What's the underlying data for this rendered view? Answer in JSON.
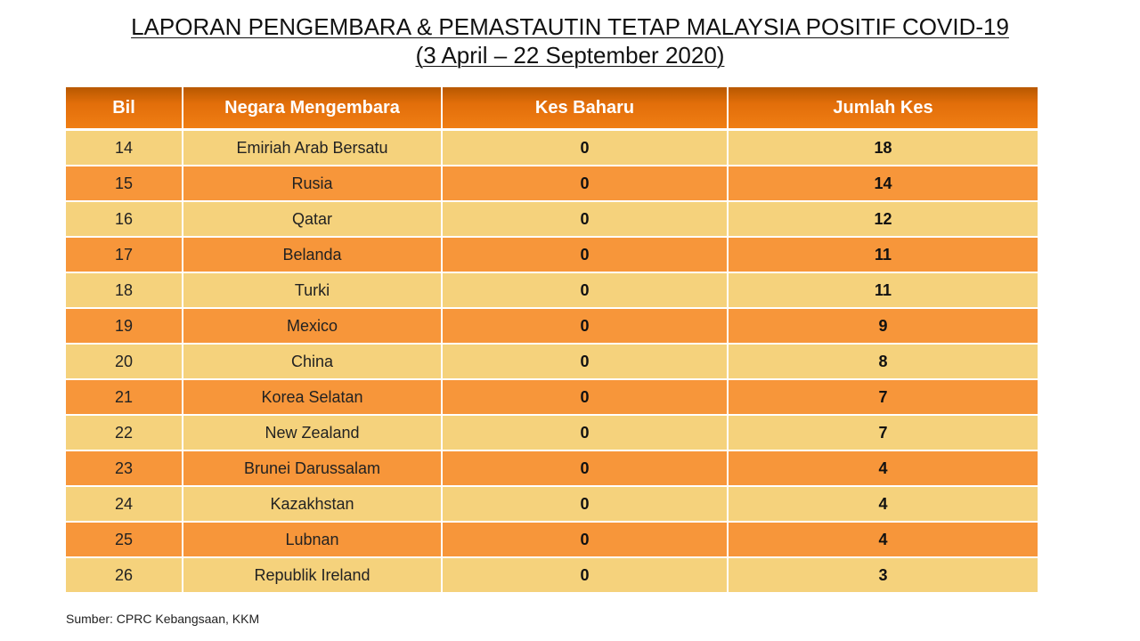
{
  "title": {
    "line1": "LAPORAN PENGEMBARA & PEMASTAUTIN TETAP MALAYSIA POSITIF COVID-19",
    "line2": "(3 April – 22 September 2020)"
  },
  "table": {
    "headers": [
      "Bil",
      "Negara Mengembara",
      "Kes Baharu",
      "Jumlah Kes"
    ],
    "rows": [
      [
        "14",
        "Emiriah Arab Bersatu",
        "0",
        "18"
      ],
      [
        "15",
        "Rusia",
        "0",
        "14"
      ],
      [
        "16",
        "Qatar",
        "0",
        "12"
      ],
      [
        "17",
        "Belanda",
        "0",
        "11"
      ],
      [
        "18",
        "Turki",
        "0",
        "11"
      ],
      [
        "19",
        "Mexico",
        "0",
        "9"
      ],
      [
        "20",
        "China",
        "0",
        "8"
      ],
      [
        "21",
        "Korea Selatan",
        "0",
        "7"
      ],
      [
        "22",
        "New Zealand",
        "0",
        "7"
      ],
      [
        "23",
        "Brunei Darussalam",
        "0",
        "4"
      ],
      [
        "24",
        "Kazakhstan",
        "0",
        "4"
      ],
      [
        "25",
        "Lubnan",
        "0",
        "4"
      ],
      [
        "26",
        "Republik Ireland",
        "0",
        "3"
      ]
    ]
  },
  "colors": {
    "header": "#e26e0a",
    "row_light": "#f5d27c",
    "row_dark": "#f7963a"
  },
  "source": "Sumber: CPRC Kebangsaan, KKM"
}
